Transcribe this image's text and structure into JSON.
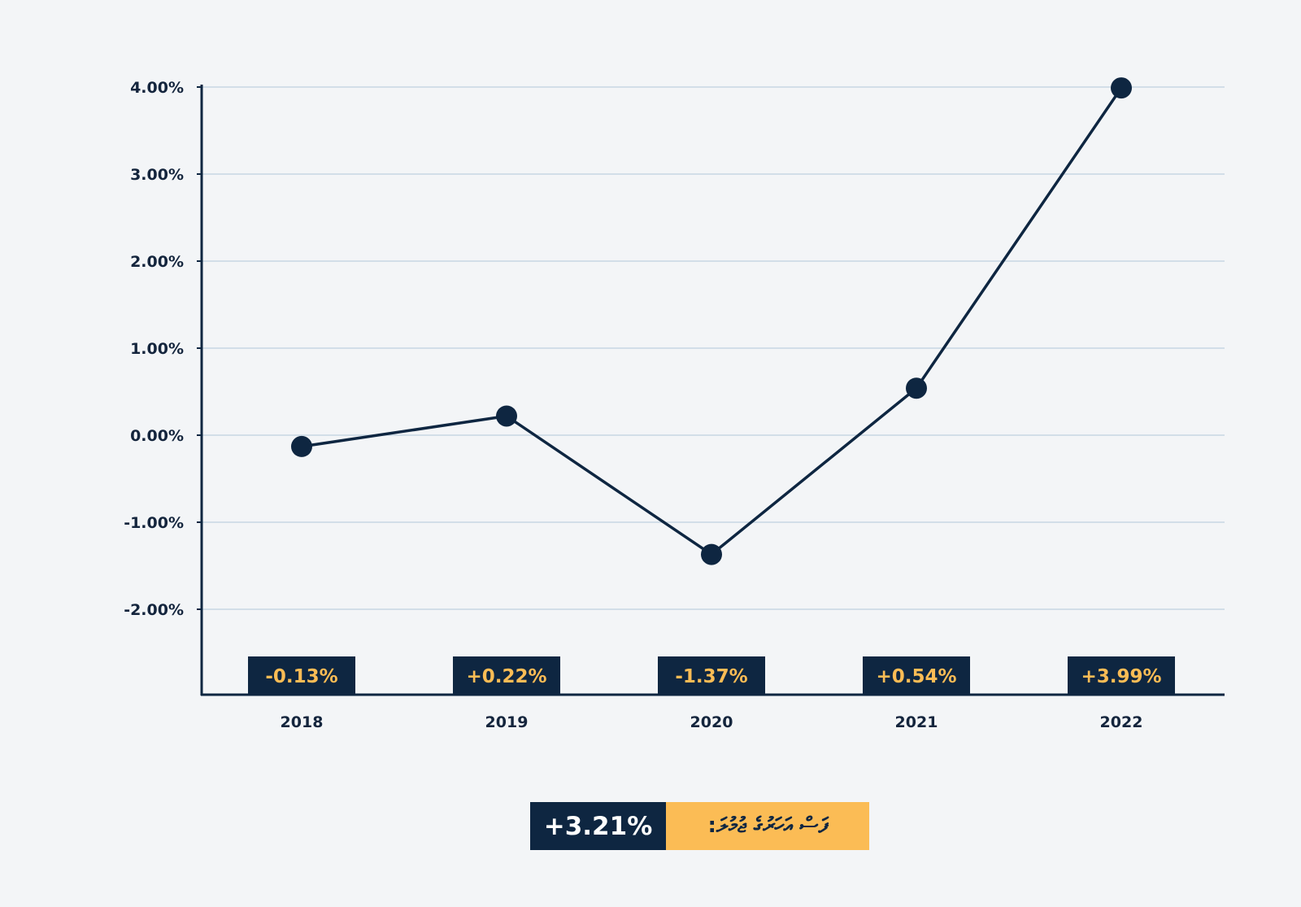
{
  "chart_data": {
    "type": "line",
    "categories": [
      "2018",
      "2019",
      "2020",
      "2021",
      "2022"
    ],
    "values": [
      -0.13,
      0.22,
      -1.37,
      0.54,
      3.99
    ],
    "value_labels": [
      "-0.13%",
      "+0.22%",
      "-1.37%",
      "+0.54%",
      "+3.99%"
    ],
    "y_ticks": [
      4,
      3,
      2,
      1,
      0,
      -1,
      -2
    ],
    "y_tick_labels": [
      "4.00%",
      "3.00%",
      "2.00%",
      "1.00%",
      "0.00%",
      "-1.00%",
      "-2.00%"
    ],
    "ylim": [
      -3,
      4
    ],
    "title": "",
    "xlabel": "",
    "ylabel": "",
    "grid": true,
    "colors": {
      "line": "#0e2641",
      "grid": "#c7d7e3",
      "badge_bg": "#0e2641",
      "badge_text": "#fbbc55",
      "background": "#f3f5f7"
    }
  },
  "summary": {
    "value": "+3.21%",
    "label": "ފަސް އަހަރުގެ ޖުމުލަ:",
    "colors": {
      "value_bg": "#0e2641",
      "label_bg": "#fbbc55"
    }
  }
}
